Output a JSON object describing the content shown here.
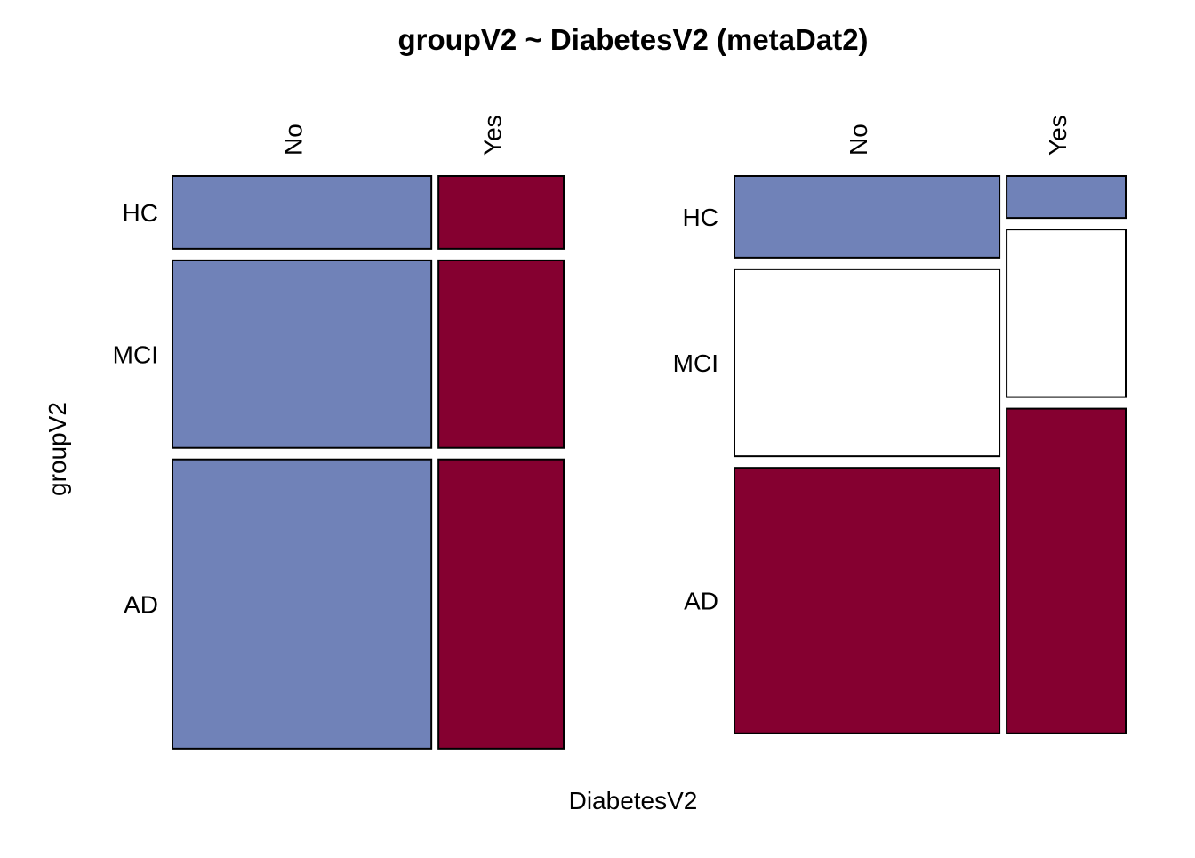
{
  "colors": {
    "blue": "#7082b8",
    "crimson": "#850030",
    "white": "#ffffff",
    "stroke": "#000000"
  },
  "chart_data": {
    "type": "mosaic",
    "title": "groupV2 ~ DiabetesV2 (metaDat2)",
    "xlabel": "DiabetesV2",
    "ylabel": "groupV2",
    "grid": false,
    "panels": [
      {
        "id": "left",
        "x_categories": [
          "No",
          "Yes"
        ],
        "x_proportions": [
          0.674,
          0.326
        ],
        "y_categories": [
          "HC",
          "MCI",
          "AD"
        ],
        "cells": [
          {
            "x_category": "No",
            "fractions": {
              "HC": 0.139,
              "MCI": 0.358,
              "AD": 0.552
            }
          },
          {
            "x_category": "Yes",
            "fractions": {
              "HC": 0.139,
              "MCI": 0.358,
              "AD": 0.552
            }
          }
        ],
        "colors_by_group": {
          "No": "#7082b8",
          "Yes": "#850030"
        }
      },
      {
        "id": "right",
        "x_categories": [
          "No",
          "Yes"
        ],
        "x_proportions": [
          0.69,
          0.31
        ],
        "y_categories": [
          "HC",
          "MCI",
          "AD"
        ],
        "cells": [
          {
            "x_category": "No",
            "fractions": {
              "HC": 0.156,
              "MCI": 0.357,
              "AD": 0.507
            }
          },
          {
            "x_category": "Yes",
            "fractions": {
              "HC": 0.08,
              "MCI": 0.32,
              "AD": 0.62
            }
          }
        ],
        "colors_by_group": {
          "HC": "#7082b8",
          "MCI": "#ffffff",
          "AD": "#850030"
        }
      }
    ]
  }
}
